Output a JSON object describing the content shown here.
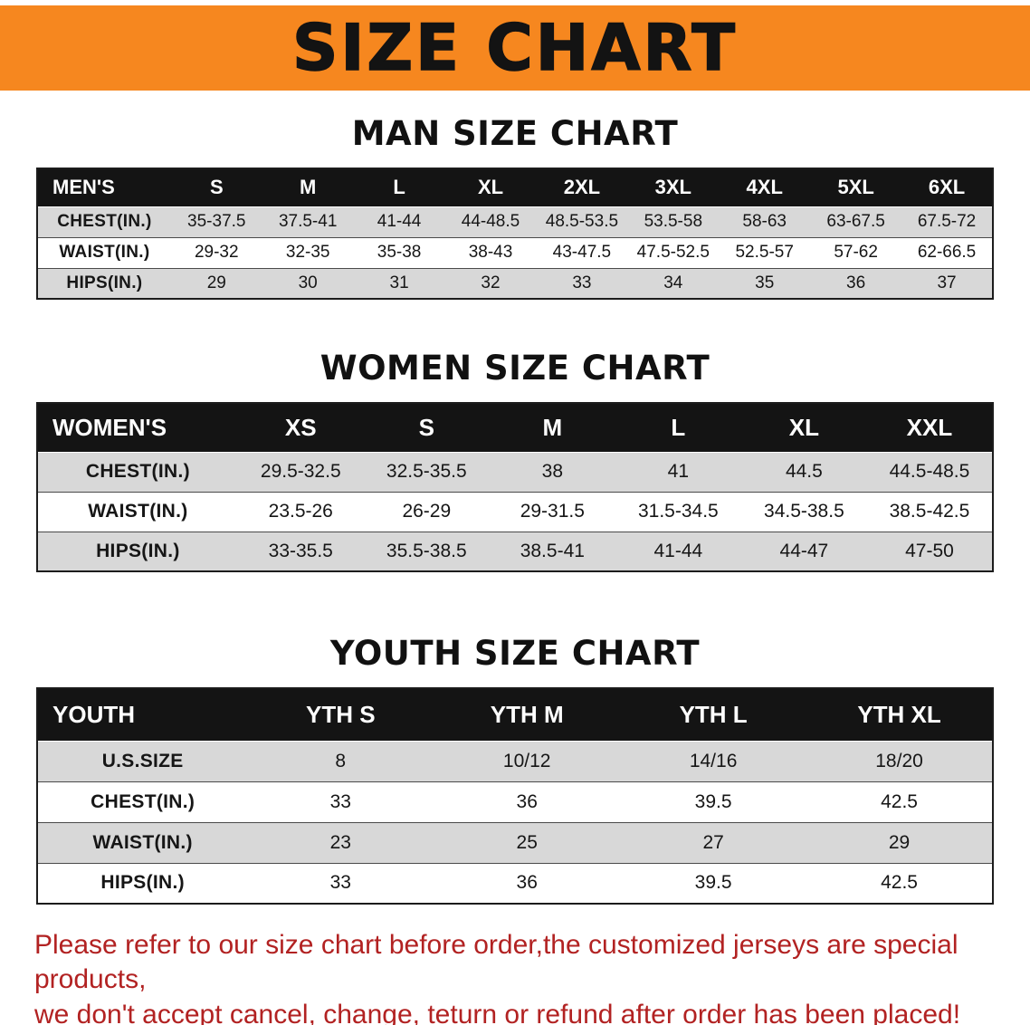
{
  "colors": {
    "banner_bg": "#f6871f",
    "header_bg": "#141414",
    "row_gray": "#d8d8d8",
    "notice_red": "#b22222"
  },
  "banner": {
    "title": "SIZE CHART"
  },
  "sections": [
    {
      "heading": "MAN SIZE CHART",
      "table": {
        "header": [
          "MEN'S",
          "S",
          "M",
          "L",
          "XL",
          "2XL",
          "3XL",
          "4XL",
          "5XL",
          "6XL"
        ],
        "rows": [
          [
            "CHEST(IN.)",
            "35-37.5",
            "37.5-41",
            "41-44",
            "44-48.5",
            "48.5-53.5",
            "53.5-58",
            "58-63",
            "63-67.5",
            "67.5-72"
          ],
          [
            "WAIST(IN.)",
            "29-32",
            "32-35",
            "35-38",
            "38-43",
            "43-47.5",
            "47.5-52.5",
            "52.5-57",
            "57-62",
            "62-66.5"
          ],
          [
            "HIPS(IN.)",
            "29",
            "30",
            "31",
            "32",
            "33",
            "34",
            "35",
            "36",
            "37"
          ]
        ]
      }
    },
    {
      "heading": "WOMEN SIZE CHART",
      "table": {
        "header": [
          "WOMEN'S",
          "XS",
          "S",
          "M",
          "L",
          "XL",
          "XXL"
        ],
        "rows": [
          [
            "CHEST(IN.)",
            "29.5-32.5",
            "32.5-35.5",
            "38",
            "41",
            "44.5",
            "44.5-48.5"
          ],
          [
            "WAIST(IN.)",
            "23.5-26",
            "26-29",
            "29-31.5",
            "31.5-34.5",
            "34.5-38.5",
            "38.5-42.5"
          ],
          [
            "HIPS(IN.)",
            "33-35.5",
            "35.5-38.5",
            "38.5-41",
            "41-44",
            "44-47",
            "47-50"
          ]
        ]
      }
    },
    {
      "heading": "YOUTH SIZE CHART",
      "table": {
        "header": [
          "YOUTH",
          "YTH S",
          "YTH M",
          "YTH L",
          "YTH XL"
        ],
        "rows": [
          [
            "U.S.SIZE",
            "8",
            "10/12",
            "14/16",
            "18/20"
          ],
          [
            "CHEST(IN.)",
            "33",
            "36",
            "39.5",
            "42.5"
          ],
          [
            "WAIST(IN.)",
            "23",
            "25",
            "27",
            "29"
          ],
          [
            "HIPS(IN.)",
            "33",
            "36",
            "39.5",
            "42.5"
          ]
        ]
      }
    }
  ],
  "footer": {
    "line1": "Please refer to our size chart before order,the customized jerseys are special products,",
    "line2": "we don't accept cancel, change, teturn or refund after order has been placed!"
  }
}
